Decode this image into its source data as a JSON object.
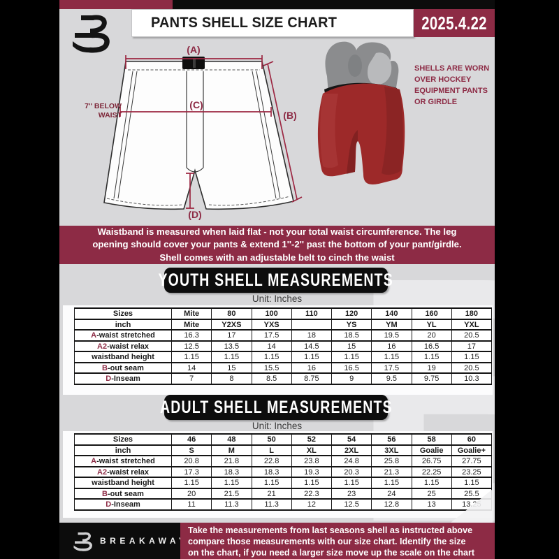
{
  "colors": {
    "accent_maroon": "#8d2b45",
    "page_gray": "#d8d8da",
    "box_black": "#0d0d0d",
    "shell_red": "#9d2929"
  },
  "header": {
    "title": "PANTS SHELL SIZE CHART",
    "date": "2025.4.22"
  },
  "diagram": {
    "labels": {
      "a": "(A)",
      "b": "(B)",
      "c": "(C)",
      "d": "(D)"
    },
    "below_waist_note": "7'' BELOW WAIST",
    "photo_note_lines": [
      "SHELLS ARE WORN",
      "OVER HOCKEY",
      "EQUIPMENT PANTS",
      "OR GIRDLE"
    ]
  },
  "banner_lines": [
    "Waistband is measured when laid flat - not your total waist circumference. The leg",
    "opening should cover your pants & extend 1''-2'' past the bottom of your pant/girdle.",
    "Shell comes with an adjustable belt to cinch the waist"
  ],
  "watermark_letter": "B",
  "sections": [
    {
      "title": "YOUTH SHELL MEASUREMENTS",
      "unit": "Unit: Inches",
      "rows": [
        {
          "prefix": "",
          "label": "Sizes",
          "header": true,
          "values": [
            "Mite",
            "80",
            "100",
            "110",
            "120",
            "140",
            "160",
            "180"
          ]
        },
        {
          "prefix": "",
          "label": "inch",
          "header": true,
          "values": [
            "Mite",
            "Y2XS",
            "YXS",
            "",
            "YS",
            "YM",
            "YL",
            "YXL"
          ]
        },
        {
          "prefix": "A",
          "label": "-waist stretched",
          "header": false,
          "values": [
            "16.3",
            "17",
            "17.5",
            "18",
            "18.5",
            "19.5",
            "20",
            "20.5"
          ]
        },
        {
          "prefix": "A2",
          "label": "-waist relax",
          "header": false,
          "values": [
            "12.5",
            "13.5",
            "14",
            "14.5",
            "15",
            "16",
            "16.5",
            "17"
          ]
        },
        {
          "prefix": "",
          "label": "waistband height",
          "header": false,
          "values": [
            "1.15",
            "1.15",
            "1.15",
            "1.15",
            "1.15",
            "1.15",
            "1.15",
            "1.15"
          ]
        },
        {
          "prefix": "B",
          "label": "-out seam",
          "header": false,
          "values": [
            "14",
            "15",
            "15.5",
            "16",
            "16.5",
            "17.5",
            "19",
            "20.5"
          ]
        },
        {
          "prefix": "D",
          "label": "-Inseam",
          "header": false,
          "values": [
            "7",
            "8",
            "8.5",
            "8.75",
            "9",
            "9.5",
            "9.75",
            "10.3"
          ]
        }
      ]
    },
    {
      "title": "ADULT SHELL MEASUREMENTS",
      "unit": "Unit: Inches",
      "rows": [
        {
          "prefix": "",
          "label": "Sizes",
          "header": true,
          "values": [
            "46",
            "48",
            "50",
            "52",
            "54",
            "56",
            "58",
            "60"
          ]
        },
        {
          "prefix": "",
          "label": "inch",
          "header": true,
          "values": [
            "S",
            "M",
            "L",
            "XL",
            "2XL",
            "3XL",
            "Goalie",
            "Goalie+"
          ]
        },
        {
          "prefix": "A",
          "label": "-waist stretched",
          "header": false,
          "values": [
            "20.8",
            "21.8",
            "22.8",
            "23.8",
            "24.8",
            "25.8",
            "26.75",
            "27.75"
          ]
        },
        {
          "prefix": "A2",
          "label": "-waist relax",
          "header": false,
          "values": [
            "17.3",
            "18.3",
            "18.3",
            "19.3",
            "20.3",
            "21.3",
            "22.25",
            "23.25"
          ]
        },
        {
          "prefix": "",
          "label": "waistband height",
          "header": false,
          "values": [
            "1.15",
            "1.15",
            "1.15",
            "1.15",
            "1.15",
            "1.15",
            "1.15",
            "1.15"
          ]
        },
        {
          "prefix": "B",
          "label": "-out seam",
          "header": false,
          "values": [
            "20",
            "21.5",
            "21",
            "22.3",
            "23",
            "24",
            "25",
            "25.5"
          ]
        },
        {
          "prefix": "D",
          "label": "-Inseam",
          "header": false,
          "values": [
            "11",
            "11.3",
            "11.3",
            "12",
            "12.5",
            "12.8",
            "13",
            "13.25"
          ]
        }
      ]
    }
  ],
  "footer": {
    "brand": "BREAKAWAY",
    "lines": [
      "Take the measurements from last seasons shell as instructed above",
      "compare those measurements with our size chart. Identify the size",
      "on the chart, if you need a larger size move up the scale on the chart"
    ]
  }
}
